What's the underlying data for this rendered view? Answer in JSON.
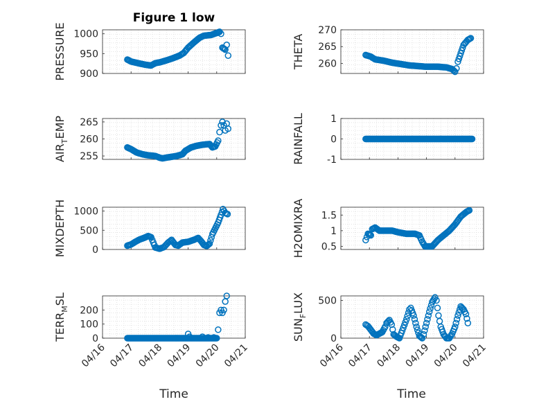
{
  "figure_title": "Figure 1 low",
  "x_axis_label": "Time",
  "x_tick_labels": [
    "04/16",
    "04/17",
    "04/18",
    "04/19",
    "04/20",
    "04/21"
  ],
  "marker_color": "#0072bd",
  "chart_data": [
    {
      "type": "scatter",
      "ylabel": "PRESSURE",
      "x_range_days": [
        16,
        21
      ],
      "ylim": [
        900,
        1010
      ],
      "yticks": [
        "900",
        "950",
        "1000"
      ],
      "grid": true,
      "keypoints": [
        [
          16.87,
          935
        ],
        [
          17.0,
          930
        ],
        [
          17.3,
          925
        ],
        [
          17.5,
          922
        ],
        [
          17.7,
          920
        ],
        [
          17.85,
          926
        ],
        [
          18.0,
          928
        ],
        [
          18.2,
          932
        ],
        [
          18.45,
          938
        ],
        [
          18.7,
          945
        ],
        [
          18.85,
          952
        ],
        [
          19.0,
          965
        ],
        [
          19.2,
          978
        ],
        [
          19.4,
          990
        ],
        [
          19.55,
          995
        ],
        [
          19.8,
          997
        ],
        [
          20.0,
          1002
        ],
        [
          20.1,
          1005
        ],
        [
          20.15,
          1000
        ],
        [
          20.2,
          965
        ],
        [
          20.3,
          960
        ],
        [
          20.35,
          972
        ],
        [
          20.4,
          945
        ]
      ]
    },
    {
      "type": "scatter",
      "ylabel": "THETA",
      "x_range_days": [
        16,
        21
      ],
      "ylim": [
        257,
        270
      ],
      "yticks": [
        "260",
        "265",
        "270"
      ],
      "grid": true,
      "keypoints": [
        [
          16.87,
          262.5
        ],
        [
          17.05,
          262.0
        ],
        [
          17.2,
          261.2
        ],
        [
          17.5,
          260.8
        ],
        [
          17.8,
          260.2
        ],
        [
          18.1,
          259.8
        ],
        [
          18.4,
          259.4
        ],
        [
          18.7,
          259.2
        ],
        [
          19.0,
          259.0
        ],
        [
          19.4,
          259.0
        ],
        [
          19.7,
          258.8
        ],
        [
          19.9,
          258.3
        ],
        [
          20.0,
          257.5
        ],
        [
          20.05,
          258.5
        ],
        [
          20.1,
          260.5
        ],
        [
          20.2,
          263.0
        ],
        [
          20.3,
          265.5
        ],
        [
          20.45,
          267.0
        ],
        [
          20.55,
          267.5
        ]
      ]
    },
    {
      "type": "scatter",
      "ylabel": "AIR",
      "ylabel_sub": "T",
      "ylabel_tail": "EMP",
      "x_range_days": [
        16,
        21
      ],
      "ylim": [
        254,
        266
      ],
      "yticks": [
        "255",
        "260",
        "265"
      ],
      "grid": true,
      "keypoints": [
        [
          16.87,
          257.5
        ],
        [
          17.0,
          257.0
        ],
        [
          17.2,
          256.0
        ],
        [
          17.4,
          255.5
        ],
        [
          17.6,
          255.2
        ],
        [
          17.85,
          255.0
        ],
        [
          18.0,
          254.5
        ],
        [
          18.1,
          254.3
        ],
        [
          18.3,
          254.6
        ],
        [
          18.6,
          255.0
        ],
        [
          18.8,
          255.5
        ],
        [
          18.9,
          256.5
        ],
        [
          19.1,
          257.5
        ],
        [
          19.3,
          258.0
        ],
        [
          19.5,
          258.3
        ],
        [
          19.75,
          258.5
        ],
        [
          19.85,
          257.5
        ],
        [
          19.95,
          257.8
        ],
        [
          20.05,
          259.5
        ],
        [
          20.1,
          262.0
        ],
        [
          20.15,
          264.0
        ],
        [
          20.2,
          265.0
        ],
        [
          20.25,
          264.0
        ],
        [
          20.3,
          262.5
        ],
        [
          20.35,
          264.5
        ],
        [
          20.4,
          263.0
        ]
      ]
    },
    {
      "type": "scatter",
      "ylabel": "RAINFALL",
      "x_range_days": [
        16,
        21
      ],
      "ylim": [
        -1,
        1
      ],
      "yticks": [
        "-1",
        "0",
        "1"
      ],
      "grid": true,
      "keypoints": [
        [
          16.87,
          0
        ],
        [
          20.6,
          0
        ]
      ]
    },
    {
      "type": "scatter",
      "ylabel": "MIXDEPTH",
      "x_range_days": [
        16,
        21
      ],
      "ylim": [
        0,
        1100
      ],
      "yticks": [
        "0",
        "500",
        "1000"
      ],
      "grid": true,
      "keypoints": [
        [
          16.87,
          100
        ],
        [
          17.0,
          130
        ],
        [
          17.15,
          200
        ],
        [
          17.3,
          260
        ],
        [
          17.45,
          300
        ],
        [
          17.6,
          350
        ],
        [
          17.7,
          320
        ],
        [
          17.78,
          180
        ],
        [
          17.85,
          50
        ],
        [
          18.0,
          20
        ],
        [
          18.15,
          60
        ],
        [
          18.3,
          180
        ],
        [
          18.42,
          250
        ],
        [
          18.55,
          120
        ],
        [
          18.65,
          100
        ],
        [
          18.8,
          180
        ],
        [
          19.0,
          200
        ],
        [
          19.2,
          250
        ],
        [
          19.35,
          300
        ],
        [
          19.45,
          220
        ],
        [
          19.55,
          120
        ],
        [
          19.65,
          90
        ],
        [
          19.75,
          150
        ],
        [
          19.85,
          400
        ],
        [
          19.95,
          550
        ],
        [
          20.05,
          700
        ],
        [
          20.15,
          900
        ],
        [
          20.22,
          1050
        ],
        [
          20.3,
          950
        ],
        [
          20.38,
          920
        ]
      ]
    },
    {
      "type": "scatter",
      "ylabel": "H2OMIXRA",
      "x_range_days": [
        16,
        21
      ],
      "ylim": [
        0.4,
        1.75
      ],
      "yticks": [
        "0.5",
        "1",
        "1.5"
      ],
      "grid": true,
      "keypoints": [
        [
          16.87,
          0.7
        ],
        [
          16.95,
          0.9
        ],
        [
          17.05,
          0.85
        ],
        [
          17.1,
          1.05
        ],
        [
          17.2,
          1.1
        ],
        [
          17.35,
          1.0
        ],
        [
          17.6,
          1.0
        ],
        [
          17.8,
          1.0
        ],
        [
          18.0,
          0.95
        ],
        [
          18.3,
          0.9
        ],
        [
          18.6,
          0.9
        ],
        [
          18.75,
          0.85
        ],
        [
          18.85,
          0.65
        ],
        [
          18.95,
          0.5
        ],
        [
          19.2,
          0.5
        ],
        [
          19.3,
          0.6
        ],
        [
          19.4,
          0.7
        ],
        [
          19.6,
          0.85
        ],
        [
          19.8,
          1.0
        ],
        [
          20.0,
          1.2
        ],
        [
          20.2,
          1.45
        ],
        [
          20.4,
          1.6
        ],
        [
          20.5,
          1.65
        ]
      ]
    },
    {
      "type": "scatter",
      "ylabel": "TERR",
      "ylabel_sub": "M",
      "ylabel_tail": "SL",
      "x_range_days": [
        16,
        21
      ],
      "ylim": [
        0,
        300
      ],
      "yticks": [
        "0",
        "100",
        "200"
      ],
      "grid": true,
      "keypoints": [
        [
          16.87,
          0
        ],
        [
          20.0,
          0
        ]
      ],
      "extra_points": [
        [
          19.0,
          30
        ],
        [
          19.05,
          10
        ],
        [
          19.5,
          10
        ],
        [
          19.7,
          5
        ],
        [
          19.9,
          5
        ],
        [
          20.05,
          60
        ],
        [
          20.1,
          180
        ],
        [
          20.15,
          200
        ],
        [
          20.2,
          180
        ],
        [
          20.25,
          200
        ],
        [
          20.3,
          260
        ],
        [
          20.35,
          300
        ]
      ]
    },
    {
      "type": "scatter",
      "ylabel": "SUN",
      "ylabel_sub": "F",
      "ylabel_tail": "LUX",
      "x_range_days": [
        16,
        21
      ],
      "ylim": [
        0,
        560
      ],
      "yticks": [
        "0",
        "500"
      ],
      "grid": true,
      "keypoints": [
        [
          16.87,
          180
        ],
        [
          16.95,
          160
        ],
        [
          17.05,
          110
        ],
        [
          17.15,
          60
        ],
        [
          17.25,
          40
        ],
        [
          17.45,
          80
        ],
        [
          17.55,
          150
        ],
        [
          17.6,
          200
        ],
        [
          17.7,
          240
        ],
        [
          17.78,
          180
        ],
        [
          17.85,
          50
        ],
        [
          17.95,
          20
        ],
        [
          18.05,
          0
        ],
        [
          18.15,
          100
        ],
        [
          18.3,
          250
        ],
        [
          18.4,
          380
        ],
        [
          18.45,
          400
        ],
        [
          18.55,
          300
        ],
        [
          18.65,
          150
        ],
        [
          18.75,
          30
        ],
        [
          18.85,
          0
        ],
        [
          18.9,
          50
        ],
        [
          19.0,
          200
        ],
        [
          19.1,
          350
        ],
        [
          19.2,
          480
        ],
        [
          19.3,
          540
        ],
        [
          19.35,
          500
        ],
        [
          19.42,
          300
        ],
        [
          19.5,
          150
        ],
        [
          19.6,
          50
        ],
        [
          19.7,
          0
        ],
        [
          19.8,
          0
        ],
        [
          19.9,
          60
        ],
        [
          20.0,
          150
        ],
        [
          20.1,
          300
        ],
        [
          20.2,
          420
        ],
        [
          20.3,
          380
        ],
        [
          20.38,
          320
        ],
        [
          20.45,
          200
        ]
      ]
    }
  ]
}
